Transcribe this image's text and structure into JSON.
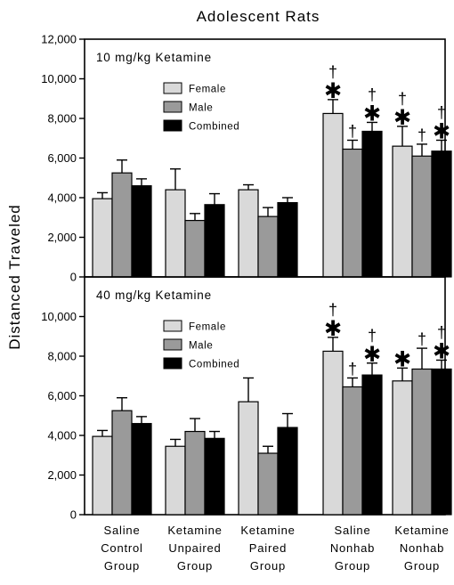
{
  "chart_data": {
    "type": "bar",
    "title": "Adolescent Rats",
    "ylabel": "Distanced Traveled",
    "categories": [
      [
        "Saline",
        "Control",
        "Group"
      ],
      [
        "Ketamine",
        "Unpaired",
        "Group"
      ],
      [
        "Ketamine",
        "Paired",
        "Group"
      ],
      [
        "Saline",
        "Nonhab",
        "Group"
      ],
      [
        "Ketamine",
        "Nonhab",
        "Group"
      ]
    ],
    "legend": {
      "placement": "upper-left",
      "entries": [
        {
          "name": "Female",
          "color": "#d9d9d9"
        },
        {
          "name": "Male",
          "color": "#9a9a9a"
        },
        {
          "name": "Combined",
          "color": "#000000"
        }
      ]
    },
    "yticks": [
      "0",
      "2,000",
      "4,000",
      "6,000",
      "8,000",
      "10,000",
      "12,000"
    ],
    "panels": [
      {
        "label": "10 mg/kg Ketamine",
        "ylim": [
          0,
          12000
        ],
        "series": [
          {
            "name": "Female",
            "values": [
              3950,
              4400,
              4400,
              8250,
              6600
            ],
            "errors": [
              300,
              1050,
              250,
              700,
              1000
            ]
          },
          {
            "name": "Male",
            "values": [
              5250,
              2850,
              3050,
              6450,
              6100
            ],
            "errors": [
              650,
              350,
              450,
              450,
              600
            ]
          },
          {
            "name": "Combined",
            "values": [
              4600,
              3650,
              3750,
              7350,
              6350
            ],
            "errors": [
              350,
              550,
              250,
              450,
              550
            ]
          }
        ],
        "marks": [
          [
            [
              "",
              ""
            ],
            [
              "",
              ""
            ],
            [
              "",
              ""
            ]
          ],
          [
            [
              "",
              ""
            ],
            [
              "",
              ""
            ],
            [
              "",
              ""
            ]
          ],
          [
            [
              "",
              ""
            ],
            [
              "",
              ""
            ],
            [
              "",
              ""
            ]
          ],
          [
            [
              "†",
              "✱"
            ],
            [
              "†",
              ""
            ],
            [
              "†",
              "✱"
            ]
          ],
          [
            [
              "†",
              "✱"
            ],
            [
              "†",
              ""
            ],
            [
              "†",
              "✱"
            ]
          ]
        ]
      },
      {
        "label": "40 mg/kg Ketamine",
        "ylim": [
          0,
          12000
        ],
        "series": [
          {
            "name": "Female",
            "values": [
              3950,
              3450,
              5700,
              8250,
              6750
            ],
            "errors": [
              300,
              350,
              1200,
              700,
              650
            ]
          },
          {
            "name": "Male",
            "values": [
              5250,
              4200,
              3100,
              6450,
              7350
            ],
            "errors": [
              650,
              650,
              350,
              450,
              1050
            ]
          },
          {
            "name": "Combined",
            "values": [
              4600,
              3850,
              4400,
              7050,
              7350
            ],
            "errors": [
              350,
              350,
              700,
              600,
              450
            ]
          }
        ],
        "marks": [
          [
            [
              "",
              ""
            ],
            [
              "",
              ""
            ],
            [
              "",
              ""
            ]
          ],
          [
            [
              "",
              ""
            ],
            [
              "",
              ""
            ],
            [
              "",
              ""
            ]
          ],
          [
            [
              "",
              ""
            ],
            [
              "",
              ""
            ],
            [
              "",
              ""
            ]
          ],
          [
            [
              "†",
              "✱"
            ],
            [
              "†",
              ""
            ],
            [
              "†",
              "✱"
            ]
          ],
          [
            [
              "",
              "✱"
            ],
            [
              "†",
              ""
            ],
            [
              "†",
              "✱"
            ]
          ]
        ]
      }
    ]
  }
}
